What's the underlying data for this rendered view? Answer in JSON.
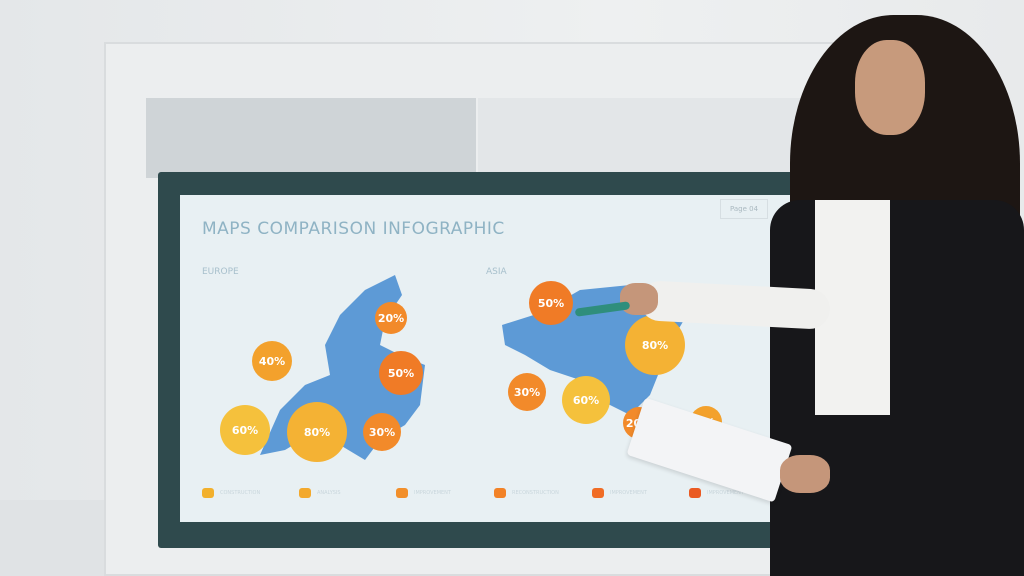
{
  "slide": {
    "title": "MAPS COMPARISON INFOGRAPHIC",
    "page_label": "Page 04",
    "regions": [
      {
        "name": "EUROPE",
        "bubbles": [
          "40%",
          "20%",
          "50%",
          "60%",
          "80%",
          "30%"
        ]
      },
      {
        "name": "ASIA",
        "bubbles": [
          "50%",
          "80%",
          "30%",
          "60%",
          "20%",
          "0%"
        ]
      }
    ],
    "legend": [
      {
        "label": "CONSTRUCTION",
        "color": "#f2b02c"
      },
      {
        "label": "ANALYSIS",
        "color": "#f3a92d"
      },
      {
        "label": "IMPROVEMENT",
        "color": "#f28f2a"
      },
      {
        "label": "RECONSTRUCTION",
        "color": "#f28227"
      },
      {
        "label": "IMPROVEMENT",
        "color": "#f06c25"
      },
      {
        "label": "IMPROVEMENT",
        "color": "#ea5a22"
      }
    ],
    "colors": {
      "map": "#5d9ad6",
      "bezel": "#2f4a4d",
      "screen": "#e8f0f3"
    }
  }
}
